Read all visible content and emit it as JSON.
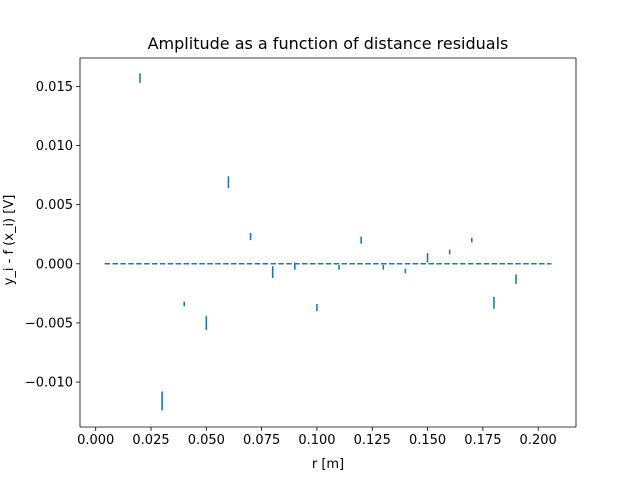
{
  "chart_data": {
    "type": "scatter",
    "title": "Amplitude as a function of distance residuals",
    "xlabel": "r [m]",
    "ylabel": "y_i - f (x_i) [V]",
    "xlim": [
      -0.0071,
      0.2171
    ],
    "ylim": [
      -0.0138,
      0.0174
    ],
    "grid": false,
    "x_ticks": [
      0.0,
      0.025,
      0.05,
      0.075,
      0.1,
      0.125,
      0.15,
      0.175,
      0.2
    ],
    "x_tick_labels": [
      "0.000",
      "0.025",
      "0.050",
      "0.075",
      "0.100",
      "0.125",
      "0.150",
      "0.175",
      "0.200"
    ],
    "y_ticks": [
      -0.01,
      -0.005,
      0.0,
      0.005,
      0.01,
      0.015
    ],
    "y_tick_labels": [
      "−0.010",
      "−0.005",
      "0.000",
      "0.005",
      "0.010",
      "0.015"
    ],
    "series": [
      {
        "color": "#1f77b4",
        "marker": "errorbar",
        "x": [
          0.02,
          0.03,
          0.04,
          0.05,
          0.06,
          0.07,
          0.08,
          0.09,
          0.1,
          0.11,
          0.12,
          0.13,
          0.14,
          0.15,
          0.16,
          0.17,
          0.18,
          0.19
        ],
        "y": [
          0.0157,
          -0.0116,
          -0.0034,
          -0.005,
          0.0069,
          0.0023,
          -0.0007,
          -0.0002,
          -0.0037,
          -0.0003,
          0.002,
          -0.0003,
          -0.0006,
          0.0005,
          0.001,
          0.002,
          -0.0033,
          -0.0013
        ],
        "yerr": [
          0.0004,
          0.0008,
          0.0002,
          0.0006,
          0.0005,
          0.0003,
          0.0005,
          0.0003,
          0.0003,
          0.0002,
          0.0003,
          0.0002,
          0.0002,
          0.0004,
          0.0002,
          0.0002,
          0.0005,
          0.0004
        ]
      }
    ],
    "reference_line": {
      "y": 0.0,
      "x_start": 0.004,
      "x_end": 0.206,
      "style": "dashed",
      "color": "#1f77b4"
    }
  }
}
